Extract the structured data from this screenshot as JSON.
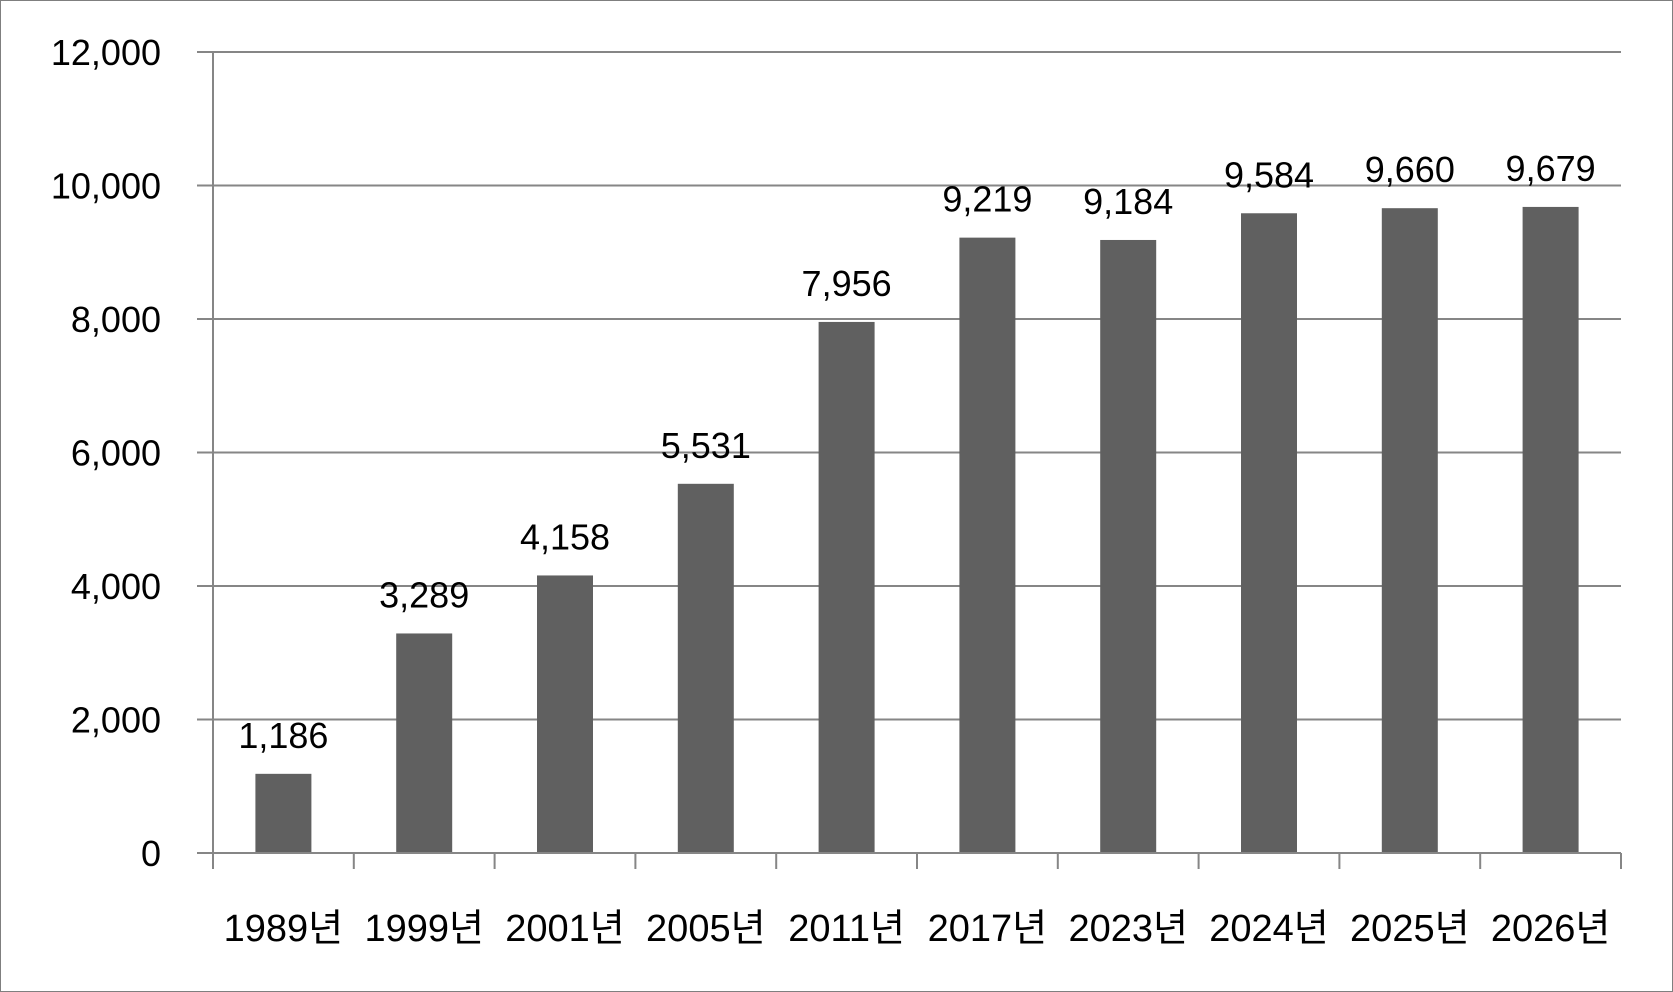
{
  "chart_data": {
    "type": "bar",
    "title": "",
    "xlabel": "",
    "ylabel": "",
    "categories": [
      "1989년",
      "1999년",
      "2001년",
      "2005년",
      "2011년",
      "2017년",
      "2023년",
      "2024년",
      "2025년",
      "2026년"
    ],
    "values": [
      1186,
      3289,
      4158,
      5531,
      7956,
      9219,
      9184,
      9584,
      9660,
      9679
    ],
    "value_labels": [
      "1,186",
      "3,289",
      "4,158",
      "5,531",
      "7,956",
      "9,219",
      "9,184",
      "9,584",
      "9,660",
      "9,679"
    ],
    "ylim": [
      0,
      12000
    ],
    "yticks": [
      0,
      2000,
      4000,
      6000,
      8000,
      10000,
      12000
    ],
    "ytick_labels": [
      "0",
      "2,000",
      "4,000",
      "6,000",
      "8,000",
      "10,000",
      "12,000"
    ],
    "grid": true,
    "legend": "none",
    "bar_color": "#606060",
    "grid_color": "#868686"
  }
}
